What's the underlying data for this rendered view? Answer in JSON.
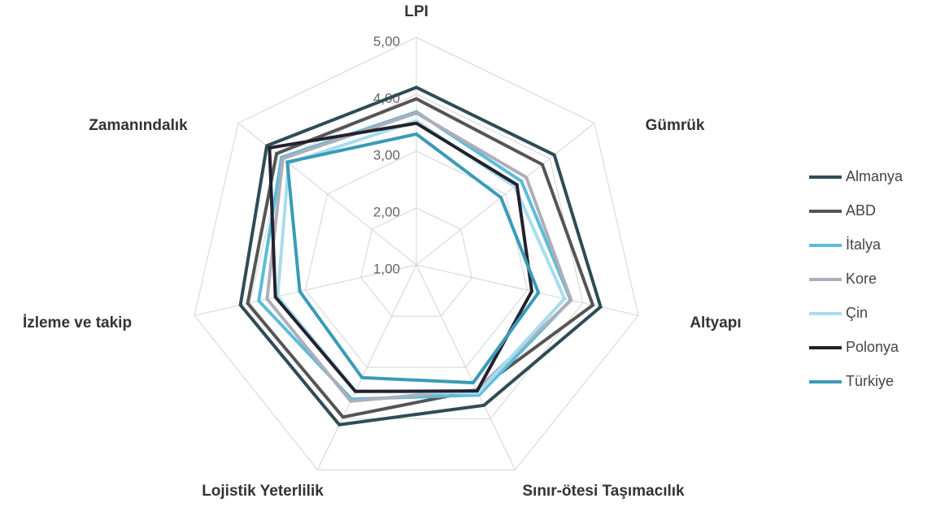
{
  "chart_data": {
    "type": "radar",
    "categories": [
      "LPI",
      "Gümrük",
      "Altyapı",
      "Sınır-ötesi Taşımacılık",
      "Lojistik Yeterlilik",
      "İzleme ve takip",
      "Zamanındalık"
    ],
    "rlim": [
      1,
      5
    ],
    "rticks": [
      {
        "value": 1,
        "label": "1,00"
      },
      {
        "value": 2,
        "label": "2,00"
      },
      {
        "value": 3,
        "label": "3,00"
      },
      {
        "value": 4,
        "label": "4,00"
      },
      {
        "value": 5,
        "label": "5,00"
      }
    ],
    "grid": true,
    "legend": "right",
    "series": [
      {
        "name": "Almanya",
        "color": "#2f4c56",
        "values": [
          4.12,
          4.1,
          4.32,
          3.74,
          4.12,
          4.17,
          4.36
        ]
      },
      {
        "name": "ABD",
        "color": "#555555",
        "values": [
          3.92,
          3.83,
          4.18,
          3.45,
          3.97,
          4.04,
          4.14
        ]
      },
      {
        "name": "İtalya",
        "color": "#5bbcd8",
        "values": [
          3.69,
          3.36,
          3.78,
          3.54,
          3.62,
          3.84,
          4.03
        ]
      },
      {
        "name": "Kore",
        "color": "#aeaeba",
        "values": [
          3.67,
          3.47,
          3.79,
          3.44,
          3.66,
          3.69,
          4.0
        ]
      },
      {
        "name": "Çin",
        "color": "#a8dcee",
        "values": [
          3.53,
          3.21,
          3.67,
          3.5,
          3.46,
          3.5,
          3.87
        ]
      },
      {
        "name": "Polonya",
        "color": "#22222e",
        "values": [
          3.49,
          3.26,
          3.08,
          3.46,
          3.47,
          3.54,
          4.3
        ]
      },
      {
        "name": "Türkiye",
        "color": "#3a9ab8",
        "values": [
          3.3,
          2.9,
          3.2,
          3.3,
          3.2,
          3.1,
          3.9
        ]
      }
    ]
  }
}
